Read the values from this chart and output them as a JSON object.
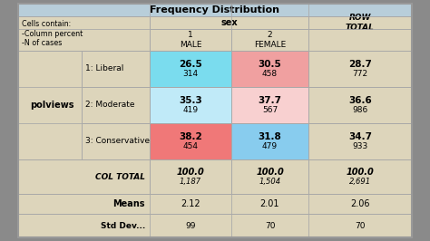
{
  "title": "Frequency Distribution",
  "title_bg": "#b8ceda",
  "table_bg": "#ddd5bb",
  "outer_bg": "#8a8a8a",
  "cells_contain_text": "Cells contain:\n-Column percent\n-N of cases",
  "sex_header": "sex",
  "col_headers": [
    "1\nMALE",
    "2\nFEMALE",
    "ROW\nTOTAL"
  ],
  "row_var": "polviews",
  "row_labels": [
    "1: Liberal",
    "2: Moderate",
    "3: Conservative",
    "COL TOTAL"
  ],
  "data": [
    [
      [
        "26.5",
        "314"
      ],
      [
        "30.5",
        "458"
      ],
      [
        "28.7",
        "772"
      ]
    ],
    [
      [
        "35.3",
        "419"
      ],
      [
        "37.7",
        "567"
      ],
      [
        "36.6",
        "986"
      ]
    ],
    [
      [
        "38.2",
        "454"
      ],
      [
        "31.8",
        "479"
      ],
      [
        "34.7",
        "933"
      ]
    ],
    [
      [
        "100.0",
        "1,187"
      ],
      [
        "100.0",
        "1,504"
      ],
      [
        "100.0",
        "2,691"
      ]
    ]
  ],
  "means": [
    "2.12",
    "2.01",
    "2.06"
  ],
  "stddev": [
    "99",
    "70",
    "70"
  ],
  "cell_colors": [
    [
      "#7adcee",
      "#f0a0a0",
      null
    ],
    [
      "#c0eaf8",
      "#f8d0d0",
      null
    ],
    [
      "#f07878",
      "#88ccee",
      null
    ],
    [
      null,
      null,
      null
    ]
  ],
  "border_color": "#999999",
  "line_color": "#aaaaaa"
}
